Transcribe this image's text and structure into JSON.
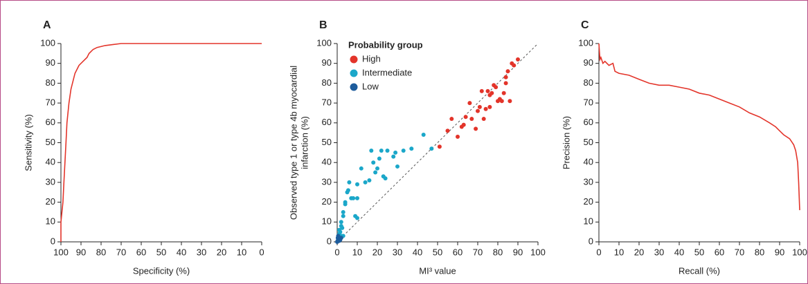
{
  "chart_data": [
    {
      "type": "line",
      "panel": "A",
      "xlabel": "Specificity (%)",
      "ylabel": [
        "Sensitivity (%)"
      ],
      "color": "#e3342a",
      "x": [
        100,
        100,
        99,
        98.5,
        98,
        97.5,
        97,
        96,
        95,
        93,
        91,
        89,
        87,
        86,
        84,
        82,
        78,
        74,
        70,
        60,
        0
      ],
      "values": [
        0,
        10,
        20,
        30,
        40,
        50,
        60,
        70,
        77,
        85,
        89,
        91,
        93,
        95,
        97,
        98,
        99,
        99.5,
        100,
        100,
        100
      ],
      "xlim": [
        100,
        0
      ],
      "ylim": [
        0,
        100
      ],
      "xticks": [
        100,
        90,
        80,
        70,
        60,
        50,
        40,
        30,
        20,
        10,
        0
      ],
      "yticks": [
        0,
        10,
        20,
        30,
        40,
        50,
        60,
        70,
        80,
        90,
        100
      ]
    },
    {
      "type": "scatter",
      "panel": "B",
      "xlabel": "MI³ value",
      "ylabel": [
        "Observed type 1 or type 4b myocardial",
        "infarction (%)"
      ],
      "legend_title": "Probability group",
      "legend": "upper left",
      "identity_line": true,
      "series": [
        {
          "name": "High",
          "color": "#e3342a",
          "x": [
            51,
            55,
            57,
            60,
            62,
            63,
            64,
            66,
            67,
            69,
            70,
            71,
            72,
            73,
            74,
            75,
            76,
            77,
            78,
            79,
            80,
            81,
            82,
            83,
            84,
            85,
            86,
            87,
            88,
            90,
            84,
            76
          ],
          "values": [
            48,
            56,
            62,
            53,
            58,
            59,
            63,
            70,
            62,
            57,
            66,
            68,
            76,
            62,
            67,
            76,
            68,
            75,
            79,
            78,
            71,
            72,
            71,
            75,
            80,
            86,
            71,
            90,
            89,
            92,
            83,
            74
          ]
        },
        {
          "name": "Intermediate",
          "color": "#1ba7c9",
          "x": [
            47,
            43,
            37,
            33,
            30,
            29,
            28,
            25,
            24,
            23,
            22,
            21,
            20,
            19,
            18,
            17,
            16,
            14,
            12,
            10,
            10,
            9,
            10,
            8,
            7,
            6,
            5,
            5.5,
            4,
            4,
            3,
            3,
            2,
            2,
            2.5,
            1.5,
            1,
            1,
            2,
            3,
            1
          ],
          "values": [
            47,
            54,
            47,
            46,
            38,
            45,
            43,
            46,
            32,
            33,
            46,
            42,
            37,
            35,
            40,
            46,
            31,
            30,
            37,
            22,
            29,
            13,
            12,
            22,
            22,
            30,
            25,
            26,
            20,
            19,
            15,
            13,
            10,
            8,
            7,
            5,
            4,
            3,
            3,
            3,
            6
          ]
        },
        {
          "name": "Low",
          "color": "#1d5c9c",
          "x": [
            0,
            0.5,
            1,
            0.3,
            1,
            0.5,
            1.5,
            0.2,
            2
          ],
          "values": [
            0,
            1,
            0.5,
            2,
            1.5,
            3,
            1,
            0.5,
            2
          ]
        }
      ],
      "xlim": [
        0,
        100
      ],
      "ylim": [
        0,
        100
      ],
      "xticks": [
        0,
        10,
        20,
        30,
        40,
        50,
        60,
        70,
        80,
        90,
        100
      ],
      "yticks": [
        0,
        10,
        20,
        30,
        40,
        50,
        60,
        70,
        80,
        90,
        100
      ]
    },
    {
      "type": "line",
      "panel": "C",
      "xlabel": "Recall (%)",
      "ylabel": [
        "Precision (%)"
      ],
      "color": "#e3342a",
      "x": [
        0,
        0.5,
        1,
        2,
        3,
        5,
        7,
        8,
        10,
        15,
        20,
        25,
        30,
        35,
        40,
        45,
        50,
        55,
        60,
        65,
        70,
        75,
        80,
        85,
        88,
        90,
        92,
        95,
        97,
        98,
        99,
        99.5,
        100
      ],
      "values": [
        100,
        92,
        93,
        90,
        91,
        89,
        90,
        86,
        85,
        84,
        82,
        80,
        79,
        79,
        78,
        77,
        75,
        74,
        72,
        70,
        68,
        65,
        63,
        60,
        58,
        56,
        54,
        52,
        49,
        46,
        40,
        30,
        16
      ],
      "xlim": [
        0,
        100
      ],
      "ylim": [
        0,
        100
      ],
      "xticks": [
        0,
        10,
        20,
        30,
        40,
        50,
        60,
        70,
        80,
        90,
        100
      ],
      "yticks": [
        0,
        10,
        20,
        30,
        40,
        50,
        60,
        70,
        80,
        90,
        100
      ]
    }
  ]
}
